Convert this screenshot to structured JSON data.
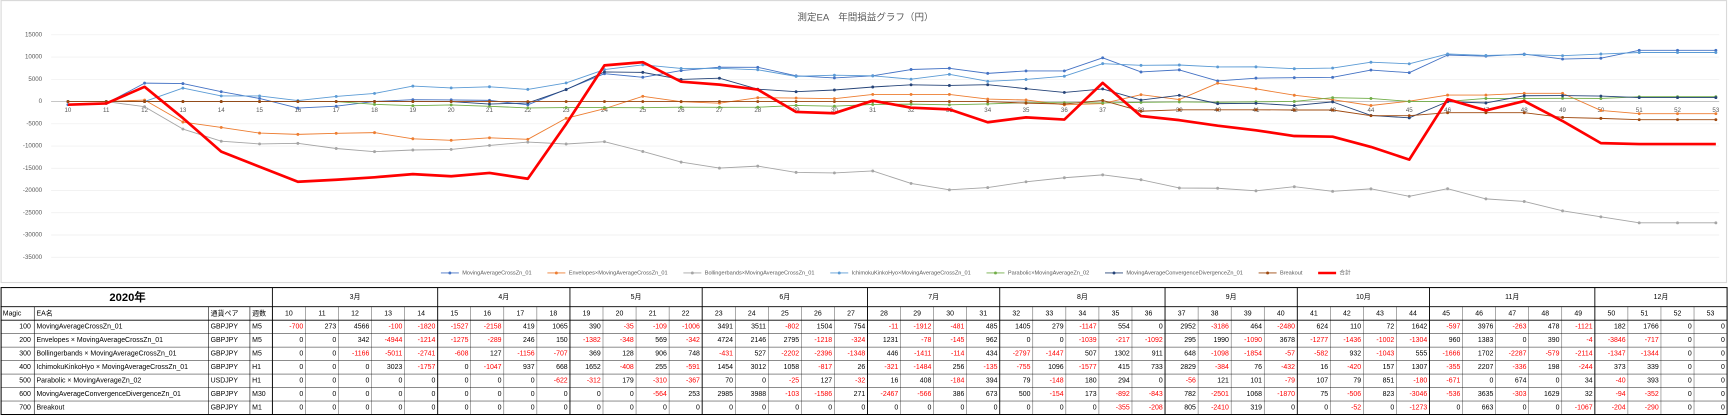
{
  "chart_data": {
    "type": "line",
    "title": "測定EA　年間損益グラフ（円）",
    "categories": [
      10,
      11,
      12,
      13,
      14,
      15,
      16,
      17,
      18,
      19,
      20,
      21,
      22,
      23,
      24,
      25,
      26,
      27,
      28,
      29,
      30,
      31,
      32,
      33,
      34,
      35,
      36,
      37,
      38,
      39,
      40,
      41,
      42,
      43,
      44,
      45,
      46,
      47,
      48,
      49,
      50,
      51,
      52,
      53
    ],
    "ylim": [
      -35000,
      15000
    ],
    "yticks": [
      15000,
      10000,
      5000,
      0,
      -5000,
      -10000,
      -15000,
      -20000,
      -25000,
      -30000,
      -35000
    ],
    "grid": true,
    "legend": "bottom",
    "series": [
      {
        "name": "MovingAverageCrossZn_01",
        "color": "#4472c4",
        "values": [
          -700,
          -427,
          4139,
          4039,
          2219,
          692,
          -1466,
          -1047,
          18,
          408,
          373,
          264,
          -742,
          2749,
          6260,
          5458,
          6962,
          7716,
          7705,
          5793,
          5312,
          5797,
          7202,
          7481,
          6334,
          6888,
          6888,
          9840,
          6654,
          7118,
          4638,
          5262,
          5372,
          5444,
          7086,
          6489,
          10465,
          10202,
          10680,
          9559,
          9741,
          11507,
          11507,
          11507
        ]
      },
      {
        "name": "Envelopes×MovingAverageCrossZn_01",
        "color": "#ed7d31",
        "values": [
          0,
          0,
          342,
          -4602,
          -5816,
          -7091,
          -7380,
          -7134,
          -6984,
          -8366,
          -8714,
          -8145,
          -8487,
          -3763,
          -1617,
          1178,
          -40,
          -364,
          867,
          789,
          644,
          1606,
          1606,
          1606,
          567,
          350,
          -742,
          -447,
          1543,
          453,
          4131,
          2854,
          1418,
          416,
          -888,
          72,
          1455,
          1455,
          1845,
          1841,
          -2005,
          -2722,
          -2722,
          -2722
        ]
      },
      {
        "name": "Bollingerbands×MovingAverageCrossZn_01",
        "color": "#a5a5a5",
        "values": [
          0,
          0,
          -1166,
          -6177,
          -8918,
          -9526,
          -9399,
          -10555,
          -11262,
          -10893,
          -10765,
          -9859,
          -9111,
          -9542,
          -9015,
          -11217,
          -13613,
          -14961,
          -14515,
          -15926,
          -16040,
          -15606,
          -18403,
          -19850,
          -19343,
          -18041,
          -17130,
          -16482,
          -17580,
          -19434,
          -19491,
          -20073,
          -19141,
          -20184,
          -19629,
          -21295,
          -19593,
          -21880,
          -22459,
          -24573,
          -25920,
          -27264,
          -27264,
          -27264
        ]
      },
      {
        "name": "IchimokuKinkoHyo×MovingAverageCrossZn_01",
        "color": "#5b9bd5",
        "values": [
          0,
          0,
          0,
          3023,
          1266,
          1266,
          219,
          1156,
          1824,
          3476,
          3068,
          3323,
          2732,
          4186,
          7198,
          8256,
          7439,
          7465,
          7144,
          5660,
          5916,
          5781,
          5026,
          6122,
          4545,
          4960,
          5693,
          8522,
          8138,
          8214,
          7782,
          7798,
          7378,
          7535,
          8842,
          8487,
          10694,
          10358,
          10556,
          10312,
          10685,
          11024,
          11024,
          11024
        ]
      },
      {
        "name": "Parabolic×MovingAverageZn_02",
        "color": "#70ad47",
        "values": [
          0,
          0,
          0,
          0,
          0,
          0,
          0,
          0,
          -622,
          -934,
          -755,
          -1065,
          -1432,
          -1362,
          -1362,
          -1387,
          -1260,
          -1292,
          -1276,
          -868,
          -1052,
          -658,
          -579,
          -727,
          -547,
          -253,
          -253,
          -309,
          -188,
          -87,
          -166,
          -59,
          20,
          871,
          691,
          20,
          20,
          694,
          694,
          728,
          688,
          1081,
          1081,
          1081
        ]
      },
      {
        "name": "MovingAverageConvergenceDivergenceZn_01",
        "color": "#264478",
        "values": [
          0,
          0,
          0,
          0,
          0,
          0,
          0,
          0,
          0,
          0,
          0,
          -564,
          -311,
          2674,
          6662,
          6559,
          4973,
          5244,
          2777,
          2211,
          2597,
          3270,
          3770,
          3616,
          3789,
          2897,
          2054,
          2836,
          335,
          1403,
          -467,
          -392,
          -898,
          -75,
          -3121,
          -3657,
          -22,
          -325,
          1304,
          1336,
          1242,
          890,
          890,
          890
        ]
      },
      {
        "name": "Breakout",
        "color": "#9e480e",
        "values": [
          0,
          0,
          0,
          0,
          0,
          0,
          0,
          0,
          0,
          0,
          0,
          0,
          0,
          0,
          0,
          0,
          0,
          0,
          0,
          0,
          0,
          0,
          0,
          0,
          0,
          -355,
          -563,
          242,
          -2168,
          -1849,
          -1849,
          -1849,
          -1901,
          -1901,
          -3174,
          -3174,
          -2511,
          -2511,
          -2511,
          -3578,
          -3782,
          -4072,
          -4072,
          -4072
        ]
      },
      {
        "name": "合計",
        "color": "#ff0000",
        "values": [
          -700,
          -427,
          3315,
          -3717,
          -11249,
          -14659,
          -18026,
          -17580,
          -17026,
          -16309,
          -16793,
          -16046,
          -17351,
          -5058,
          8126,
          8847,
          4461,
          3808,
          2702,
          -2341,
          -2623,
          190,
          -1378,
          -1752,
          -4655,
          -3554,
          -4053,
          4202,
          -3266,
          -4182,
          -5422,
          -6459,
          -7752,
          -7894,
          -10193,
          -13058,
          508,
          -2007,
          109,
          -4375,
          -9351,
          -9556,
          -9556,
          -9556
        ]
      }
    ]
  },
  "table": {
    "year": "2020年",
    "months": [
      "3月",
      "4月",
      "5月",
      "6月",
      "7月",
      "8月",
      "9月",
      "10月",
      "11月",
      "12月"
    ],
    "headers": [
      "Magic",
      "EA名",
      "通貨ペア",
      "週数"
    ],
    "rows": [
      {
        "magic": 100,
        "name": "MovingAverageCrossZn_01",
        "pair": "GBPJPY",
        "timeframe": "M5",
        "values": [
          -700,
          273,
          4566,
          -100,
          -1820,
          -1527,
          -2158,
          419,
          1065,
          390,
          -35,
          -109,
          -1006,
          3491,
          3511,
          -802,
          1504,
          754,
          -11,
          -1912,
          -481,
          485,
          1405,
          279,
          -1147,
          554,
          0,
          2952,
          -3186,
          464,
          -2480,
          624,
          110,
          72,
          1642,
          -597,
          3976,
          -263,
          478,
          -1121,
          182,
          1766,
          0,
          0
        ]
      },
      {
        "magic": 200,
        "name": "Envelopes × MovingAverageCrossZn_01",
        "pair": "GBPJPY",
        "timeframe": "M5",
        "values": [
          0,
          0,
          342,
          -4944,
          -1214,
          -1275,
          -289,
          246,
          150,
          -1382,
          -348,
          569,
          -342,
          4724,
          2146,
          2795,
          -1218,
          -324,
          1231,
          -78,
          -145,
          962,
          0,
          0,
          -1039,
          -217,
          -1092,
          295,
          1990,
          -1090,
          3678,
          -1277,
          -1436,
          -1002,
          -1304,
          960,
          1383,
          0,
          390,
          -4,
          -3846,
          -717,
          0,
          0
        ]
      },
      {
        "magic": 300,
        "name": "Bollingerbands × MovingAverageCrossZn_01",
        "pair": "GBPJPY",
        "timeframe": "M5",
        "values": [
          0,
          0,
          -1166,
          -5011,
          -2741,
          -608,
          127,
          -1156,
          -707,
          369,
          128,
          906,
          748,
          -431,
          527,
          -2202,
          -2396,
          -1348,
          446,
          -1411,
          -114,
          434,
          -2797,
          -1447,
          507,
          1302,
          911,
          648,
          -1098,
          -1854,
          -57,
          -582,
          932,
          -1043,
          555,
          -1666,
          1702,
          -2287,
          -579,
          -2114,
          -1347,
          -1344,
          0,
          0
        ]
      },
      {
        "magic": 400,
        "name": "IchimokuKinkoHyo × MovingAverageCrossZn_01",
        "pair": "GBPJPY",
        "timeframe": "H1",
        "values": [
          0,
          0,
          0,
          3023,
          -1757,
          0,
          -1047,
          937,
          668,
          1652,
          -408,
          255,
          -591,
          1454,
          3012,
          1058,
          -817,
          26,
          -321,
          -1484,
          256,
          -135,
          -755,
          1096,
          -1577,
          415,
          733,
          2829,
          -384,
          76,
          -432,
          16,
          -420,
          157,
          1307,
          -355,
          2207,
          -336,
          198,
          -244,
          373,
          339,
          0,
          0
        ]
      },
      {
        "magic": 500,
        "name": "Parabolic × MovingAverageZn_02",
        "pair": "USDJPY",
        "timeframe": "H1",
        "values": [
          0,
          0,
          0,
          0,
          0,
          0,
          0,
          0,
          -622,
          -312,
          179,
          -310,
          -367,
          70,
          0,
          -25,
          127,
          -32,
          16,
          408,
          -184,
          394,
          79,
          -148,
          180,
          294,
          0,
          -56,
          121,
          101,
          -79,
          107,
          79,
          851,
          -180,
          -671,
          0,
          674,
          0,
          34,
          -40,
          393,
          0,
          0
        ]
      },
      {
        "magic": 600,
        "name": "MovingAverageConvergenceDivergenceZn_01",
        "pair": "GBPJPY",
        "timeframe": "M30",
        "values": [
          0,
          0,
          0,
          0,
          0,
          0,
          0,
          0,
          0,
          0,
          0,
          -564,
          253,
          2985,
          3988,
          -103,
          -1586,
          271,
          -2467,
          -566,
          386,
          673,
          500,
          -154,
          173,
          -892,
          -843,
          782,
          -2501,
          1068,
          -1870,
          75,
          -506,
          823,
          -3046,
          -536,
          3635,
          -303,
          1629,
          32,
          -94,
          -352,
          0,
          0
        ]
      },
      {
        "magic": 700,
        "name": "Breakout",
        "pair": "GBPJPY",
        "timeframe": "M1",
        "values": [
          0,
          0,
          0,
          0,
          0,
          0,
          0,
          0,
          0,
          0,
          0,
          0,
          0,
          0,
          0,
          0,
          0,
          0,
          0,
          0,
          0,
          0,
          0,
          0,
          0,
          -355,
          -208,
          805,
          -2410,
          319,
          0,
          0,
          -52,
          0,
          -1273,
          0,
          663,
          0,
          0,
          -1067,
          -204,
          -290,
          0,
          0
        ]
      }
    ]
  }
}
